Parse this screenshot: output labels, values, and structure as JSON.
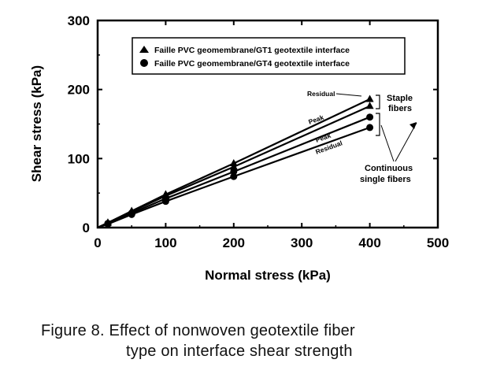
{
  "chart_data": {
    "type": "line",
    "xlabel": "Normal stress (kPa)",
    "ylabel": "Shear stress (kPa)",
    "xlim": [
      0,
      500
    ],
    "ylim": [
      0,
      300
    ],
    "xticks": [
      "0",
      "100",
      "200",
      "300",
      "400",
      "500"
    ],
    "yticks": [
      "0",
      "100",
      "200",
      "300"
    ],
    "grid": false,
    "legend_position": "top",
    "series": [
      {
        "name": "Faille PVC geomembrane/GT1 geotextile interface",
        "marker": "triangle",
        "curve": "Residual",
        "x": [
          0,
          15,
          50,
          100,
          200,
          400
        ],
        "y": [
          0,
          7,
          24,
          48,
          93,
          186
        ]
      },
      {
        "name": "Faille PVC geomembrane/GT1 geotextile interface",
        "marker": "triangle",
        "curve": "Peak",
        "x": [
          0,
          15,
          50,
          100,
          200,
          400
        ],
        "y": [
          0,
          7,
          23,
          46,
          88,
          176
        ]
      },
      {
        "name": "Faille PVC geomembrane/GT4 geotextile interface",
        "marker": "circle",
        "curve": "Peak",
        "x": [
          0,
          15,
          50,
          100,
          200,
          400
        ],
        "y": [
          0,
          6,
          21,
          42,
          81,
          160
        ]
      },
      {
        "name": "Faille PVC geomembrane/GT4 geotextile interface",
        "marker": "circle",
        "curve": "Residual",
        "x": [
          0,
          15,
          50,
          100,
          200,
          400
        ],
        "y": [
          0,
          5,
          19,
          38,
          74,
          145
        ]
      }
    ],
    "annotations": {
      "residual_top": "Residual",
      "peak_top": "Peak",
      "peak_bottom": "Peak",
      "residual_bottom": "Residual",
      "staple_line1": "Staple",
      "staple_line2": "fibers",
      "continuous_line1": "Continuous",
      "continuous_line2": "single fibers"
    }
  },
  "caption": {
    "line1": "Figure 8.  Effect of nonwoven geotextile fiber",
    "line2": "type on interface shear strength"
  }
}
